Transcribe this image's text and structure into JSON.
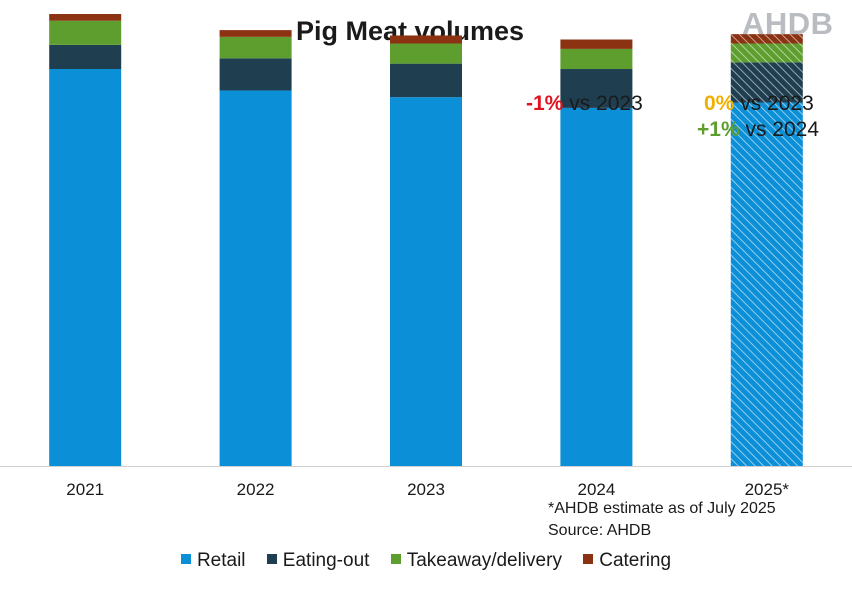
{
  "chart_data": {
    "type": "bar",
    "stacked": true,
    "title": "Pig Meat volumes",
    "categories": [
      "2021",
      "2022",
      "2023",
      "2024",
      "2025*"
    ],
    "series": [
      {
        "name": "Retail",
        "color": "#0b8fd6",
        "values": [
          296,
          280,
          275,
          267,
          271
        ]
      },
      {
        "name": "Eating-out",
        "color": "#1f3f50",
        "values": [
          18,
          24,
          25,
          29,
          30
        ]
      },
      {
        "name": "Takeaway/delivery",
        "color": "#5e9e2e",
        "values": [
          18,
          16,
          15,
          15,
          14
        ]
      },
      {
        "name": "Catering",
        "color": "#8a3212",
        "values": [
          5,
          5,
          6,
          7,
          7
        ]
      }
    ],
    "estimate_categories": [
      "2025*"
    ],
    "ylim": [
      0,
      340
    ],
    "grid": false,
    "legend_position": "bottom",
    "xlabel": "",
    "ylabel": ""
  },
  "logo_text": "AHDB",
  "annotations": {
    "y2024": {
      "pct": "-1%",
      "text": " vs 2023",
      "color": "#e0141e"
    },
    "y2025_a": {
      "pct": "0%",
      "text": " vs 2023",
      "color": "#f0b000"
    },
    "y2025_b": {
      "pct": "+1%",
      "text": " vs 2024",
      "color": "#5e9e2e"
    }
  },
  "footnote": {
    "line1": "*AHDB estimate as of July 2025",
    "line2": "Source: AHDB"
  }
}
